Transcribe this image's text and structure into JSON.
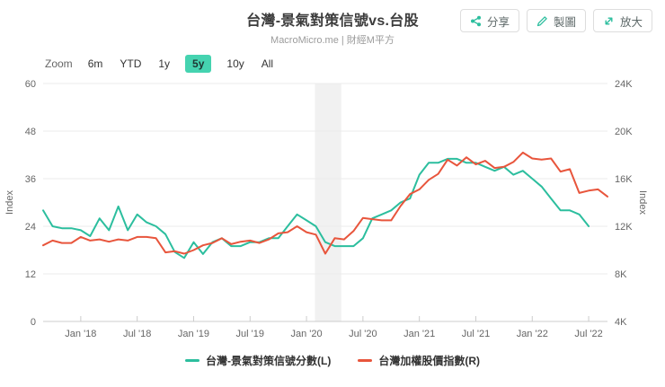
{
  "header": {
    "title": "台灣-景氣對策信號vs.台股",
    "subtitle": "MacroMicro.me | 財經M平方"
  },
  "toolbar": {
    "share_label": "分享",
    "draw_label": "製圖",
    "expand_label": "放大",
    "icon_color": "#2cbe9e"
  },
  "range_selector": {
    "label": "Zoom",
    "options": [
      "6m",
      "YTD",
      "1y",
      "5y",
      "10y",
      "All"
    ],
    "active": "5y",
    "active_bg": "#45d3b0"
  },
  "legend": [
    {
      "label": "台灣-景氣對策信號分數(L)",
      "color": "#2cbe9e"
    },
    {
      "label": "台灣加權股價指數(R)",
      "color": "#e8553c"
    }
  ],
  "chart_data": {
    "type": "line",
    "x_unit": "month",
    "x_start": "2017-09",
    "x_end": "2022-09",
    "x_slots": 61,
    "x_tick_indices": [
      4,
      10,
      16,
      22,
      28,
      34,
      40,
      46,
      52,
      58
    ],
    "x_tick_labels": [
      "Jan '18",
      "Jul '18",
      "Jan '19",
      "Jul '19",
      "Jan '20",
      "Jul '20",
      "Jan '21",
      "Jul '21",
      "Jan '22",
      "Jul '22"
    ],
    "y_left": {
      "title": "Index",
      "min": 0,
      "max": 60,
      "ticks": [
        0,
        12,
        24,
        36,
        48,
        60
      ],
      "tick_labels": [
        "0",
        "12",
        "24",
        "36",
        "48",
        "60"
      ]
    },
    "y_right": {
      "title": "Index",
      "min": 4000,
      "max": 24000,
      "ticks": [
        4000,
        8000,
        12000,
        16000,
        20000,
        24000
      ],
      "tick_labels": [
        "4K",
        "8K",
        "12K",
        "16K",
        "20K",
        "24K"
      ]
    },
    "recession_band": {
      "start_index": 28.9,
      "end_index": 31.7,
      "color": "#f1f1f1"
    },
    "grid_color": "#ebebeb",
    "axis_line_color": "#cccccc",
    "tick_color": "#cccccc",
    "label_color": "#666666",
    "series": [
      {
        "name": "台灣-景氣對策信號分數(L)",
        "axis": "left",
        "color": "#2cbe9e",
        "values": [
          28,
          24,
          23.5,
          23.5,
          23,
          21.5,
          26,
          23,
          29,
          23,
          27,
          25,
          24,
          22,
          17.5,
          16,
          20,
          17,
          20,
          21,
          19,
          19,
          20,
          20,
          21,
          21,
          24,
          27,
          25.5,
          24,
          20,
          19,
          19,
          19,
          21,
          26,
          27,
          28,
          30,
          31,
          37,
          40,
          40,
          41,
          41,
          40,
          40,
          39,
          38,
          39,
          37,
          38,
          36,
          34,
          31,
          28,
          28,
          27,
          24
        ]
      },
      {
        "name": "台灣加權股價指數(R)",
        "axis": "right",
        "color": "#e8553c",
        "values": [
          10400,
          10800,
          10600,
          10600,
          11100,
          10800,
          10900,
          10700,
          10900,
          10800,
          11100,
          11100,
          11000,
          9800,
          9900,
          9700,
          10000,
          10400,
          10600,
          11000,
          10500,
          10700,
          10800,
          10600,
          10900,
          11400,
          11500,
          12000,
          11500,
          11300,
          9700,
          11000,
          10900,
          11600,
          12700,
          12600,
          12500,
          12500,
          13700,
          14700,
          15100,
          15900,
          16400,
          17600,
          17100,
          17800,
          17200,
          17500,
          16900,
          17000,
          17400,
          18200,
          17700,
          17600,
          17700,
          16600,
          16800,
          14800,
          15000,
          15100,
          14500
        ]
      }
    ]
  }
}
